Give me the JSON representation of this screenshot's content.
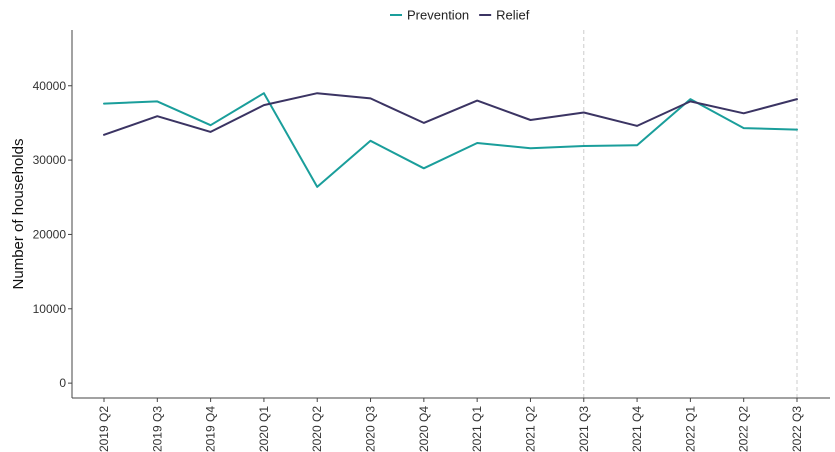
{
  "chart_data": {
    "type": "line",
    "title": "",
    "xlabel": "",
    "ylabel": "Number of households",
    "categories": [
      "2019 Q2",
      "2019 Q3",
      "2019 Q4",
      "2020 Q1",
      "2020 Q2",
      "2020 Q3",
      "2020 Q4",
      "2021 Q1",
      "2021 Q2",
      "2021 Q3",
      "2021 Q4",
      "2022 Q1",
      "2022 Q2",
      "2022 Q3"
    ],
    "ylim": [
      -2000,
      47500
    ],
    "yticks": [
      0,
      10000,
      20000,
      30000,
      40000
    ],
    "ytick_labels": [
      "0",
      "10000",
      "20000",
      "30000",
      "40000"
    ],
    "grid": false,
    "legend_position": "top",
    "reference_lines": [
      "2021 Q3",
      "2022 Q3"
    ],
    "series": [
      {
        "name": "Prevention",
        "color": "#1a9e9b",
        "values": [
          37600,
          37900,
          34700,
          39000,
          26400,
          32600,
          28900,
          32300,
          31600,
          31900,
          32000,
          38200,
          34300,
          34100
        ]
      },
      {
        "name": "Relief",
        "color": "#3b3463",
        "values": [
          33400,
          35900,
          33800,
          37400,
          39000,
          38300,
          35000,
          38000,
          35400,
          36400,
          34600,
          37900,
          36300,
          38200
        ]
      }
    ]
  }
}
